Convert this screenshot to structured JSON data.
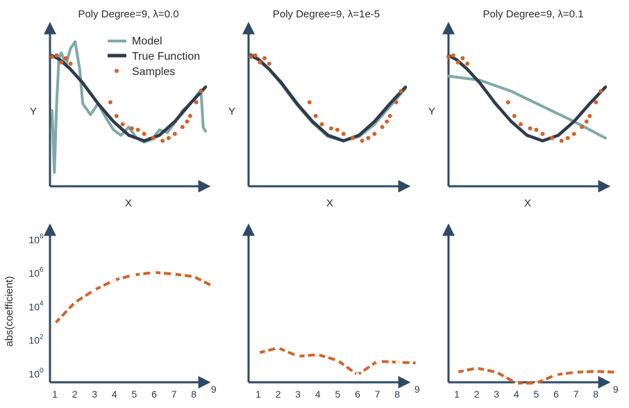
{
  "colors": {
    "model": "#7fa9a8",
    "true_function": "#2f3b4a",
    "samples": "#d3632a",
    "axis": "#2f4a63",
    "coef": "#d3632a"
  },
  "legend": {
    "model": "Model",
    "true_function": "True Function",
    "samples": "Samples"
  },
  "chart_data": [
    {
      "type": "line",
      "title": "Poly Degree=9, λ=0.0",
      "xlabel": "X",
      "ylabel": "Y",
      "xlim": [
        0,
        1
      ],
      "ylim": [
        0,
        1
      ],
      "true_function": {
        "x": [
          0.0,
          0.05,
          0.12,
          0.2,
          0.3,
          0.4,
          0.5,
          0.6,
          0.7,
          0.8,
          0.9,
          1.0
        ],
        "y": [
          0.9,
          0.87,
          0.8,
          0.7,
          0.55,
          0.42,
          0.32,
          0.28,
          0.32,
          0.42,
          0.55,
          0.67
        ]
      },
      "model": {
        "x": [
          0.0,
          0.015,
          0.03,
          0.045,
          0.06,
          0.09,
          0.12,
          0.15,
          0.18,
          0.2,
          0.25,
          0.3,
          0.35,
          0.4,
          0.45,
          0.5,
          0.55,
          0.6,
          0.65,
          0.7,
          0.75,
          0.8,
          0.85,
          0.9,
          0.95,
          0.97,
          0.985,
          1.0
        ],
        "y": [
          0.5,
          0.05,
          0.55,
          0.88,
          0.92,
          0.83,
          0.95,
          1.0,
          0.8,
          0.55,
          0.47,
          0.55,
          0.45,
          0.36,
          0.32,
          0.38,
          0.3,
          0.27,
          0.29,
          0.36,
          0.34,
          0.41,
          0.5,
          0.55,
          0.62,
          0.65,
          0.38,
          0.35
        ]
      },
      "samples": {
        "x": [
          0.0,
          0.03,
          0.06,
          0.09,
          0.12,
          0.38,
          0.42,
          0.46,
          0.52,
          0.56,
          0.6,
          0.66,
          0.72,
          0.76,
          0.8,
          0.85,
          0.88,
          0.9,
          0.94,
          0.97
        ],
        "y": [
          0.89,
          0.9,
          0.85,
          0.88,
          0.84,
          0.56,
          0.46,
          0.4,
          0.37,
          0.36,
          0.33,
          0.3,
          0.28,
          0.3,
          0.33,
          0.38,
          0.42,
          0.46,
          0.56,
          0.64
        ]
      }
    },
    {
      "type": "line",
      "title": "Poly Degree=9, λ=1e-5",
      "xlabel": "X",
      "ylabel": "Y",
      "xlim": [
        0,
        1
      ],
      "ylim": [
        0,
        1
      ],
      "true_function": {
        "x": [
          0.0,
          0.05,
          0.12,
          0.2,
          0.3,
          0.4,
          0.5,
          0.6,
          0.7,
          0.8,
          0.9,
          1.0
        ],
        "y": [
          0.9,
          0.87,
          0.8,
          0.7,
          0.55,
          0.42,
          0.32,
          0.28,
          0.32,
          0.42,
          0.55,
          0.67
        ]
      },
      "model": {
        "x": [
          0.0,
          0.05,
          0.12,
          0.2,
          0.3,
          0.4,
          0.5,
          0.6,
          0.7,
          0.8,
          0.9,
          1.0
        ],
        "y": [
          0.91,
          0.88,
          0.8,
          0.69,
          0.54,
          0.41,
          0.31,
          0.28,
          0.31,
          0.4,
          0.53,
          0.66
        ]
      },
      "samples": {
        "x": [
          0.0,
          0.03,
          0.06,
          0.09,
          0.12,
          0.38,
          0.42,
          0.46,
          0.52,
          0.56,
          0.6,
          0.66,
          0.72,
          0.76,
          0.8,
          0.85,
          0.88,
          0.9,
          0.94,
          0.97
        ],
        "y": [
          0.89,
          0.9,
          0.85,
          0.88,
          0.84,
          0.56,
          0.46,
          0.4,
          0.37,
          0.36,
          0.33,
          0.3,
          0.28,
          0.3,
          0.33,
          0.38,
          0.42,
          0.46,
          0.56,
          0.64
        ]
      }
    },
    {
      "type": "line",
      "title": "Poly Degree=9, λ=0.1",
      "xlabel": "X",
      "ylabel": "Y",
      "xlim": [
        0,
        1
      ],
      "ylim": [
        0,
        1
      ],
      "true_function": {
        "x": [
          0.0,
          0.05,
          0.12,
          0.2,
          0.3,
          0.4,
          0.5,
          0.6,
          0.7,
          0.8,
          0.9,
          1.0
        ],
        "y": [
          0.9,
          0.87,
          0.8,
          0.7,
          0.55,
          0.42,
          0.32,
          0.28,
          0.32,
          0.42,
          0.55,
          0.67
        ]
      },
      "model": {
        "x": [
          0.0,
          0.2,
          0.4,
          0.6,
          0.8,
          1.0
        ],
        "y": [
          0.75,
          0.72,
          0.64,
          0.53,
          0.42,
          0.3
        ]
      },
      "samples": {
        "x": [
          0.0,
          0.03,
          0.06,
          0.09,
          0.12,
          0.38,
          0.42,
          0.46,
          0.52,
          0.56,
          0.6,
          0.66,
          0.72,
          0.76,
          0.8,
          0.85,
          0.88,
          0.9,
          0.94,
          0.97
        ],
        "y": [
          0.89,
          0.9,
          0.85,
          0.88,
          0.84,
          0.56,
          0.46,
          0.4,
          0.37,
          0.36,
          0.33,
          0.3,
          0.28,
          0.3,
          0.33,
          0.38,
          0.42,
          0.46,
          0.56,
          0.64
        ]
      }
    },
    {
      "type": "line",
      "title": "",
      "ylabel": "abs(coefficient)",
      "yscale": "log",
      "ylim_log10": [
        -0.5,
        8.2
      ],
      "yticks": [
        {
          "base": "10",
          "exp": "0",
          "value": 0
        },
        {
          "base": "10",
          "exp": "2",
          "value": 2
        },
        {
          "base": "10",
          "exp": "4",
          "value": 4
        },
        {
          "base": "10",
          "exp": "6",
          "value": 6
        },
        {
          "base": "10",
          "exp": "8",
          "value": 8
        }
      ],
      "xticks": [
        "1",
        "2",
        "3",
        "4",
        "5",
        "6",
        "7",
        "8",
        "9"
      ],
      "x": [
        0,
        1,
        2,
        3,
        4,
        5,
        6,
        7,
        8,
        9
      ],
      "log10_values": [
        3.0,
        4.25,
        5.0,
        5.6,
        5.9,
        6.05,
        5.95,
        5.8,
        5.2
      ]
    },
    {
      "type": "line",
      "title": "",
      "yscale": "log",
      "ylim_log10": [
        -0.5,
        8.2
      ],
      "xticks": [
        "1",
        "2",
        "3",
        "4",
        "5",
        "6",
        "7",
        "8",
        "9"
      ],
      "x": [
        0,
        1,
        2,
        3,
        4,
        5,
        6,
        7,
        8,
        9
      ],
      "log10_values": [
        1.25,
        1.55,
        1.05,
        1.15,
        0.8,
        -0.05,
        0.75,
        0.7,
        0.65
      ]
    },
    {
      "type": "line",
      "title": "",
      "yscale": "log",
      "ylim_log10": [
        -0.5,
        8.2
      ],
      "xticks": [
        "1",
        "2",
        "3",
        "4",
        "5",
        "6",
        "7",
        "8",
        "9"
      ],
      "x": [
        0,
        1,
        2,
        3,
        4,
        5,
        6,
        7,
        8,
        9
      ],
      "log10_values": [
        0.1,
        0.35,
        0.1,
        -0.55,
        -0.55,
        -0.05,
        0.1,
        0.15,
        0.1
      ]
    }
  ]
}
